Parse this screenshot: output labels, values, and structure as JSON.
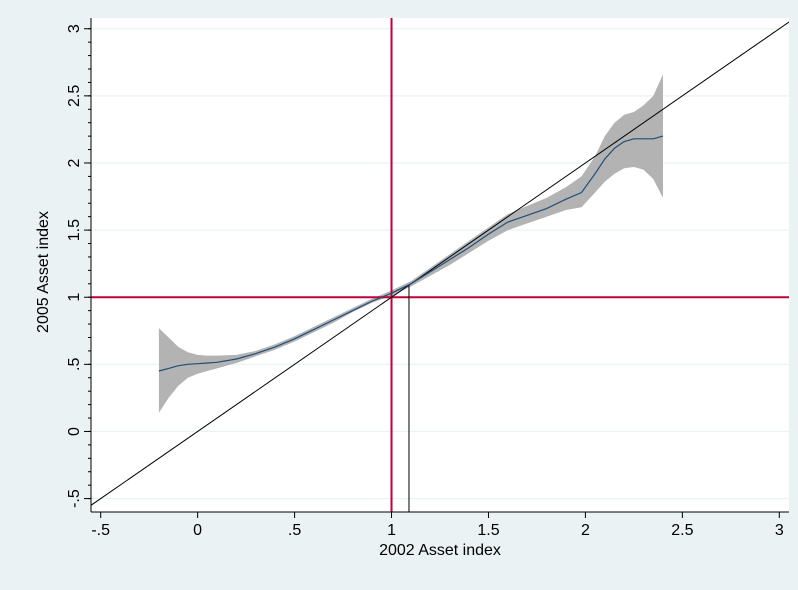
{
  "chart_data": {
    "type": "line",
    "title": "",
    "xlabel": "2002 Asset index",
    "ylabel": "2005 Asset index",
    "xlim": [
      -0.55,
      3.05
    ],
    "ylim": [
      -0.6,
      3.08
    ],
    "x_ticks": [
      -0.5,
      0,
      0.5,
      1,
      1.5,
      2,
      2.5,
      3
    ],
    "x_tick_labels": [
      "-.5",
      "0",
      ".5",
      "1",
      "1.5",
      "2",
      "2.5",
      "3"
    ],
    "y_ticks": [
      -0.5,
      0,
      0.5,
      1,
      1.5,
      2,
      2.5,
      3
    ],
    "y_tick_labels": [
      "-.5",
      "0",
      ".5",
      "1",
      "1.5",
      "2",
      "2.5",
      "3"
    ],
    "y_minor_step": 0.1,
    "grid": true,
    "legend": "none",
    "colors": {
      "background": "#eaf2f3",
      "plot": "#ffffff",
      "grid": "#eaf2f3",
      "ci_band": "#b3b3b3",
      "fit_line": "#1f4e79",
      "reference": "#c0003c",
      "diagonal": "#000000"
    },
    "series": [
      {
        "role": "fit",
        "x": [
          -0.2,
          -0.15,
          -0.1,
          -0.05,
          0.0,
          0.05,
          0.1,
          0.2,
          0.3,
          0.4,
          0.5,
          0.6,
          0.7,
          0.8,
          0.9,
          1.0,
          1.1,
          1.2,
          1.3,
          1.4,
          1.5,
          1.6,
          1.7,
          1.8,
          1.9,
          1.98,
          2.05,
          2.1,
          2.15,
          2.2,
          2.25,
          2.3,
          2.35,
          2.4
        ],
        "y": [
          0.45,
          0.47,
          0.49,
          0.5,
          0.505,
          0.51,
          0.515,
          0.54,
          0.58,
          0.63,
          0.69,
          0.76,
          0.83,
          0.9,
          0.97,
          1.03,
          1.1,
          1.19,
          1.28,
          1.37,
          1.47,
          1.56,
          1.61,
          1.66,
          1.73,
          1.78,
          1.92,
          2.03,
          2.11,
          2.16,
          2.18,
          2.18,
          2.18,
          2.2
        ]
      },
      {
        "role": "ci_lower",
        "x": [
          -0.2,
          -0.15,
          -0.1,
          -0.05,
          0.0,
          0.05,
          0.1,
          0.2,
          0.3,
          0.4,
          0.5,
          0.6,
          0.7,
          0.8,
          0.9,
          1.0,
          1.1,
          1.2,
          1.3,
          1.4,
          1.5,
          1.6,
          1.7,
          1.8,
          1.9,
          1.98,
          2.05,
          2.1,
          2.15,
          2.2,
          2.25,
          2.3,
          2.35,
          2.4
        ],
        "y": [
          0.14,
          0.25,
          0.34,
          0.4,
          0.43,
          0.45,
          0.47,
          0.51,
          0.56,
          0.61,
          0.67,
          0.74,
          0.81,
          0.89,
          0.96,
          1.01,
          1.08,
          1.16,
          1.24,
          1.33,
          1.42,
          1.5,
          1.55,
          1.6,
          1.65,
          1.67,
          1.78,
          1.86,
          1.92,
          1.96,
          1.97,
          1.95,
          1.88,
          1.74
        ]
      },
      {
        "role": "ci_upper",
        "x": [
          -0.2,
          -0.15,
          -0.1,
          -0.05,
          0.0,
          0.05,
          0.1,
          0.2,
          0.3,
          0.4,
          0.5,
          0.6,
          0.7,
          0.8,
          0.9,
          1.0,
          1.1,
          1.2,
          1.3,
          1.4,
          1.5,
          1.6,
          1.7,
          1.8,
          1.9,
          1.98,
          2.05,
          2.1,
          2.15,
          2.2,
          2.25,
          2.3,
          2.35,
          2.4
        ],
        "y": [
          0.77,
          0.7,
          0.63,
          0.59,
          0.57,
          0.565,
          0.565,
          0.57,
          0.6,
          0.65,
          0.71,
          0.78,
          0.85,
          0.92,
          0.99,
          1.05,
          1.12,
          1.22,
          1.32,
          1.42,
          1.52,
          1.62,
          1.68,
          1.74,
          1.82,
          1.9,
          2.05,
          2.2,
          2.3,
          2.36,
          2.38,
          2.43,
          2.5,
          2.66
        ]
      }
    ],
    "reference_lines": [
      {
        "orientation": "vertical",
        "value": 1,
        "color": "#c0003c"
      },
      {
        "orientation": "horizontal",
        "value": 1,
        "color": "#c0003c"
      },
      {
        "orientation": "diagonal",
        "slope": 1,
        "intercept": 0,
        "color": "#000000"
      },
      {
        "orientation": "vertical-segment",
        "value": 1.09,
        "from_y": -0.6,
        "to_y": 1.09,
        "color": "#000000"
      }
    ]
  }
}
